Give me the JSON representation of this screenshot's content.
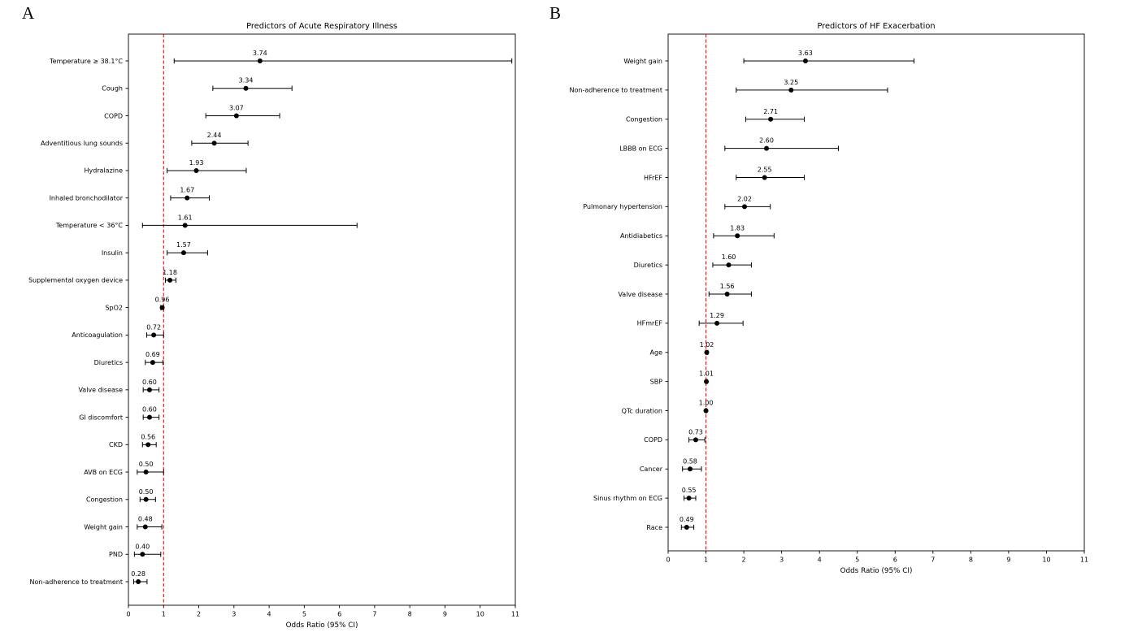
{
  "figure": {
    "panel_a_letter": "A",
    "panel_b_letter": "B",
    "background_color": "#ffffff",
    "point_color": "#000000",
    "reference_color": "#ff0000"
  },
  "chart_data": [
    {
      "type": "scatter",
      "subtype": "forest-plot",
      "title": "Predictors of Acute Respiratory Illness",
      "xlabel": "Odds Ratio (95% CI)",
      "xlim": [
        0,
        11
      ],
      "xticks": [
        0,
        1,
        2,
        3,
        4,
        5,
        6,
        7,
        8,
        9,
        10,
        11
      ],
      "reference_line": 1,
      "reference_color": "#ff0000",
      "grid": false,
      "rows": [
        {
          "label": "Temperature ≥ 38.1°C",
          "or": 3.74,
          "ci_low": 1.3,
          "ci_high": 10.9
        },
        {
          "label": "Cough",
          "or": 3.34,
          "ci_low": 2.4,
          "ci_high": 4.65
        },
        {
          "label": "COPD",
          "or": 3.07,
          "ci_low": 2.2,
          "ci_high": 4.3
        },
        {
          "label": "Adventitious lung sounds",
          "or": 2.44,
          "ci_low": 1.8,
          "ci_high": 3.4
        },
        {
          "label": "Hydralazine",
          "or": 1.93,
          "ci_low": 1.1,
          "ci_high": 3.35
        },
        {
          "label": "Inhaled bronchodilator",
          "or": 1.67,
          "ci_low": 1.2,
          "ci_high": 2.3
        },
        {
          "label": "Temperature < 36°C",
          "or": 1.61,
          "ci_low": 0.4,
          "ci_high": 6.5
        },
        {
          "label": "Insulin",
          "or": 1.57,
          "ci_low": 1.1,
          "ci_high": 2.25
        },
        {
          "label": "Supplemental oxygen device",
          "or": 1.18,
          "ci_low": 1.05,
          "ci_high": 1.35
        },
        {
          "label": "SpO2",
          "or": 0.96,
          "ci_low": 0.92,
          "ci_high": 1.0
        },
        {
          "label": "Anticoagulation",
          "or": 0.72,
          "ci_low": 0.52,
          "ci_high": 1.0
        },
        {
          "label": "Diuretics",
          "or": 0.69,
          "ci_low": 0.48,
          "ci_high": 0.98
        },
        {
          "label": "Valve disease",
          "or": 0.6,
          "ci_low": 0.42,
          "ci_high": 0.87
        },
        {
          "label": "GI discomfort",
          "or": 0.6,
          "ci_low": 0.42,
          "ci_high": 0.87
        },
        {
          "label": "CKD",
          "or": 0.56,
          "ci_low": 0.4,
          "ci_high": 0.79
        },
        {
          "label": "AVB on ECG",
          "or": 0.5,
          "ci_low": 0.25,
          "ci_high": 1.0
        },
        {
          "label": "Congestion",
          "or": 0.5,
          "ci_low": 0.33,
          "ci_high": 0.77
        },
        {
          "label": "Weight gain",
          "or": 0.48,
          "ci_low": 0.25,
          "ci_high": 0.95
        },
        {
          "label": "PND",
          "or": 0.4,
          "ci_low": 0.17,
          "ci_high": 0.92
        },
        {
          "label": "Non-adherence to treatment",
          "or": 0.28,
          "ci_low": 0.15,
          "ci_high": 0.53
        }
      ]
    },
    {
      "type": "scatter",
      "subtype": "forest-plot",
      "title": "Predictors of HF Exacerbation",
      "xlabel": "Odds Ratio (95% CI)",
      "xlim": [
        0,
        11
      ],
      "xticks": [
        0,
        1,
        2,
        3,
        4,
        5,
        6,
        7,
        8,
        9,
        10,
        11
      ],
      "reference_line": 1,
      "reference_color": "#ff0000",
      "grid": false,
      "rows": [
        {
          "label": "Weight gain",
          "or": 3.63,
          "ci_low": 2.0,
          "ci_high": 6.5
        },
        {
          "label": "Non-adherence to treatment",
          "or": 3.25,
          "ci_low": 1.8,
          "ci_high": 5.8
        },
        {
          "label": "Congestion",
          "or": 2.71,
          "ci_low": 2.05,
          "ci_high": 3.6
        },
        {
          "label": "LBBB on ECG",
          "or": 2.6,
          "ci_low": 1.5,
          "ci_high": 4.5
        },
        {
          "label": "HFrEF",
          "or": 2.55,
          "ci_low": 1.8,
          "ci_high": 3.6
        },
        {
          "label": "Pulmonary hypertension",
          "or": 2.02,
          "ci_low": 1.5,
          "ci_high": 2.7
        },
        {
          "label": "Antidiabetics",
          "or": 1.83,
          "ci_low": 1.2,
          "ci_high": 2.8
        },
        {
          "label": "Diuretics",
          "or": 1.6,
          "ci_low": 1.18,
          "ci_high": 2.2
        },
        {
          "label": "Valve disease",
          "or": 1.56,
          "ci_low": 1.08,
          "ci_high": 2.2
        },
        {
          "label": "HFmrEF",
          "or": 1.29,
          "ci_low": 0.82,
          "ci_high": 1.98
        },
        {
          "label": "Age",
          "or": 1.02,
          "ci_low": 1.0,
          "ci_high": 1.05
        },
        {
          "label": "SBP",
          "or": 1.01,
          "ci_low": 1.0,
          "ci_high": 1.03
        },
        {
          "label": "QTc duration",
          "or": 1.0,
          "ci_low": 0.99,
          "ci_high": 1.01
        },
        {
          "label": "COPD",
          "or": 0.73,
          "ci_low": 0.55,
          "ci_high": 0.97
        },
        {
          "label": "Cancer",
          "or": 0.58,
          "ci_low": 0.38,
          "ci_high": 0.88
        },
        {
          "label": "Sinus rhythm on ECG",
          "or": 0.55,
          "ci_low": 0.42,
          "ci_high": 0.73
        },
        {
          "label": "Race",
          "or": 0.49,
          "ci_low": 0.35,
          "ci_high": 0.68
        }
      ]
    }
  ]
}
